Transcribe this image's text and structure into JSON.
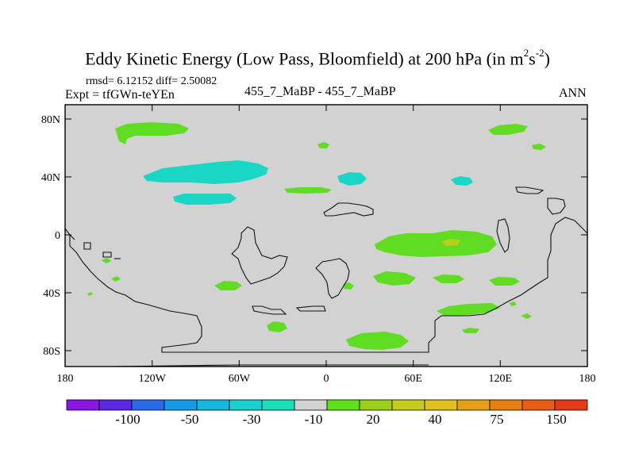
{
  "title": {
    "main": "Eddy Kinetic Energy (Low Pass, Bloomfield) at 200 hPa (in m",
    "sup1": "2",
    "mid": "s",
    "sup2": "-2",
    "close": ")"
  },
  "stats": "rmsd= 6.12152  diff= 2.50082",
  "expt": "Expt = tfGWn-teYEn",
  "case": "455_7_MaBP - 455_7_MaBP",
  "season": "ANN",
  "axes": {
    "lat_labels": [
      "80N",
      "40N",
      "0",
      "40S",
      "80S"
    ],
    "lon_labels": [
      "180",
      "120W",
      "60W",
      "0",
      "60E",
      "120E",
      "180"
    ]
  },
  "colorbar": {
    "colors": [
      "#8a16e6",
      "#5a28e6",
      "#2a6ae6",
      "#1a9ae6",
      "#16b8e0",
      "#1ad0d0",
      "#1ae0b8",
      "#d2d2d2",
      "#5ee01a",
      "#9ad01a",
      "#c6cc1a",
      "#e0c01a",
      "#e6a016",
      "#e67e16",
      "#e65e16",
      "#e63a16"
    ],
    "labels": [
      "-100",
      "-50",
      "-30",
      "-10",
      "20",
      "40",
      "75",
      "150"
    ]
  },
  "palette": {
    "land_bg": "#d2d2d2",
    "teal": "#1ad6c4",
    "green": "#60dc22",
    "yellow_green": "#b4d01a"
  }
}
